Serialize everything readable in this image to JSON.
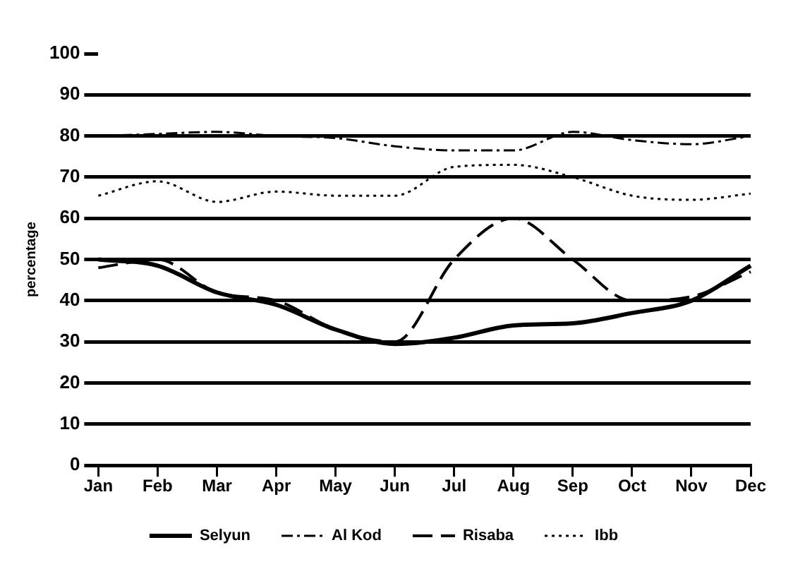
{
  "chart_data": {
    "type": "line",
    "ylabel": "percentage",
    "categories": [
      "Jan",
      "Feb",
      "Mar",
      "Apr",
      "May",
      "Jun",
      "Jul",
      "Aug",
      "Sep",
      "Oct",
      "Nov",
      "Dec"
    ],
    "series": [
      {
        "name": "Selyun",
        "color": "#000000",
        "line_style": "solid",
        "values": [
          50,
          48.5,
          42,
          39,
          33,
          29.5,
          31,
          34,
          34.5,
          37,
          40,
          48.5
        ]
      },
      {
        "name": "Al Kod",
        "color": "#000000",
        "line_style": "dashdot",
        "values": [
          80,
          80.5,
          81,
          80,
          79.5,
          77.5,
          76.5,
          76.5,
          81,
          79,
          78,
          80
        ]
      },
      {
        "name": "Risaba",
        "color": "#000000",
        "line_style": "dashed",
        "values": [
          48,
          50,
          42,
          40,
          33,
          30,
          50,
          60,
          50,
          40,
          41,
          47
        ]
      },
      {
        "name": "Ibb",
        "color": "#000000",
        "line_style": "dotted",
        "values": [
          65.5,
          69,
          64,
          66.5,
          65.5,
          65.5,
          72.5,
          73,
          70,
          65.5,
          64.5,
          66
        ]
      }
    ],
    "ylim": [
      0,
      100
    ],
    "yticks": [
      0,
      10,
      20,
      30,
      40,
      50,
      60,
      70,
      80,
      90,
      100
    ],
    "grid": "y",
    "legend": "bottom",
    "marker": "none"
  }
}
